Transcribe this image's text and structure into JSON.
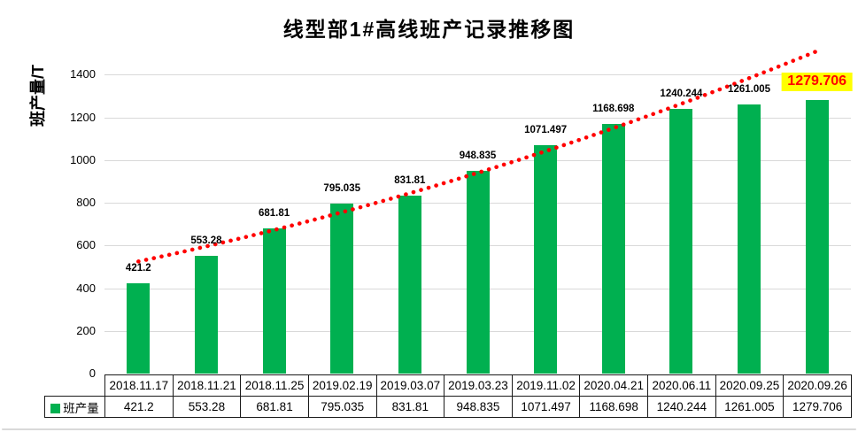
{
  "window": {
    "background": "#FFFFFF",
    "bottom_edge_color": "#D9D9D9"
  },
  "chart_data": {
    "type": "bar",
    "title": "线型部1#高线班产记录推移图",
    "ylabel": "班产量/T",
    "xlabel": "",
    "categories": [
      "2018.11.17",
      "2018.11.21",
      "2018.11.25",
      "2019.02.19",
      "2019.03.07",
      "2019.03.23",
      "2019.11.02",
      "2020.04.21",
      "2020.06.11",
      "2020.09.25",
      "2020.09.26"
    ],
    "series": [
      {
        "name": "班产量",
        "color": "#00B050",
        "values": [
          421.2,
          553.28,
          681.81,
          795.035,
          831.81,
          948.835,
          1071.497,
          1168.698,
          1240.244,
          1261.005,
          1279.706
        ]
      }
    ],
    "ylim": [
      0,
      1400
    ],
    "ytick_step": 200,
    "grid": true,
    "gridline_color": "#D9D9D9",
    "value_label_color": "#000000",
    "legend": {
      "label": "班产量",
      "swatch_color": "#00B050",
      "position": "data-table-row-header"
    },
    "trendline": {
      "style": "dotted",
      "color": "#FF0000",
      "estimated_values": {
        "at_first_category": 525,
        "at_middle_category": 940,
        "at_last_category": 1510
      }
    },
    "last_label_highlight": {
      "background": "#FFFF00",
      "text_color": "#FF0000"
    },
    "data_table_shown": true
  }
}
